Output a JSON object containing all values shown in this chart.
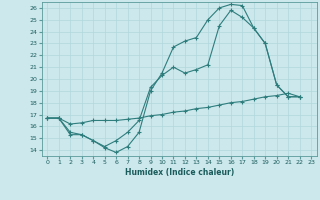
{
  "xlabel": "Humidex (Indice chaleur)",
  "bg_color": "#cce8ec",
  "grid_color": "#aacccc",
  "line_color": "#2e7d7d",
  "xlim": [
    -0.5,
    23.5
  ],
  "ylim": [
    13.5,
    26.5
  ],
  "xticks": [
    0,
    1,
    2,
    3,
    4,
    5,
    6,
    7,
    8,
    9,
    10,
    11,
    12,
    13,
    14,
    15,
    16,
    17,
    18,
    19,
    20,
    21,
    22,
    23
  ],
  "yticks": [
    14,
    15,
    16,
    17,
    18,
    19,
    20,
    21,
    22,
    23,
    24,
    25,
    26
  ],
  "line1_x": [
    0,
    1,
    2,
    3,
    4,
    5,
    6,
    7,
    8,
    9,
    10,
    11,
    12,
    13,
    14,
    15,
    16,
    17,
    18,
    19,
    20,
    21,
    22
  ],
  "line1_y": [
    16.7,
    16.7,
    15.3,
    15.3,
    14.8,
    14.2,
    13.8,
    14.3,
    15.5,
    19.0,
    20.5,
    22.7,
    23.2,
    23.5,
    25.0,
    26.0,
    26.3,
    26.2,
    24.3,
    23.0,
    19.5,
    18.5,
    18.5
  ],
  "line2_x": [
    0,
    1,
    2,
    3,
    4,
    5,
    6,
    7,
    8,
    9,
    10,
    11,
    12,
    13,
    14,
    15,
    16,
    17,
    18,
    19,
    20,
    21,
    22
  ],
  "line2_y": [
    16.7,
    16.7,
    15.5,
    15.3,
    14.8,
    14.3,
    14.8,
    15.5,
    16.5,
    19.3,
    20.3,
    21.0,
    20.5,
    20.8,
    21.2,
    24.5,
    25.8,
    25.2,
    24.3,
    23.0,
    19.5,
    18.5,
    18.5
  ],
  "line3_x": [
    0,
    1,
    2,
    3,
    4,
    5,
    6,
    7,
    8,
    9,
    10,
    11,
    12,
    13,
    14,
    15,
    16,
    17,
    18,
    19,
    20,
    21,
    22
  ],
  "line3_y": [
    16.7,
    16.7,
    16.2,
    16.3,
    16.5,
    16.5,
    16.5,
    16.6,
    16.7,
    16.9,
    17.0,
    17.2,
    17.3,
    17.5,
    17.6,
    17.8,
    18.0,
    18.1,
    18.3,
    18.5,
    18.6,
    18.8,
    18.5
  ]
}
